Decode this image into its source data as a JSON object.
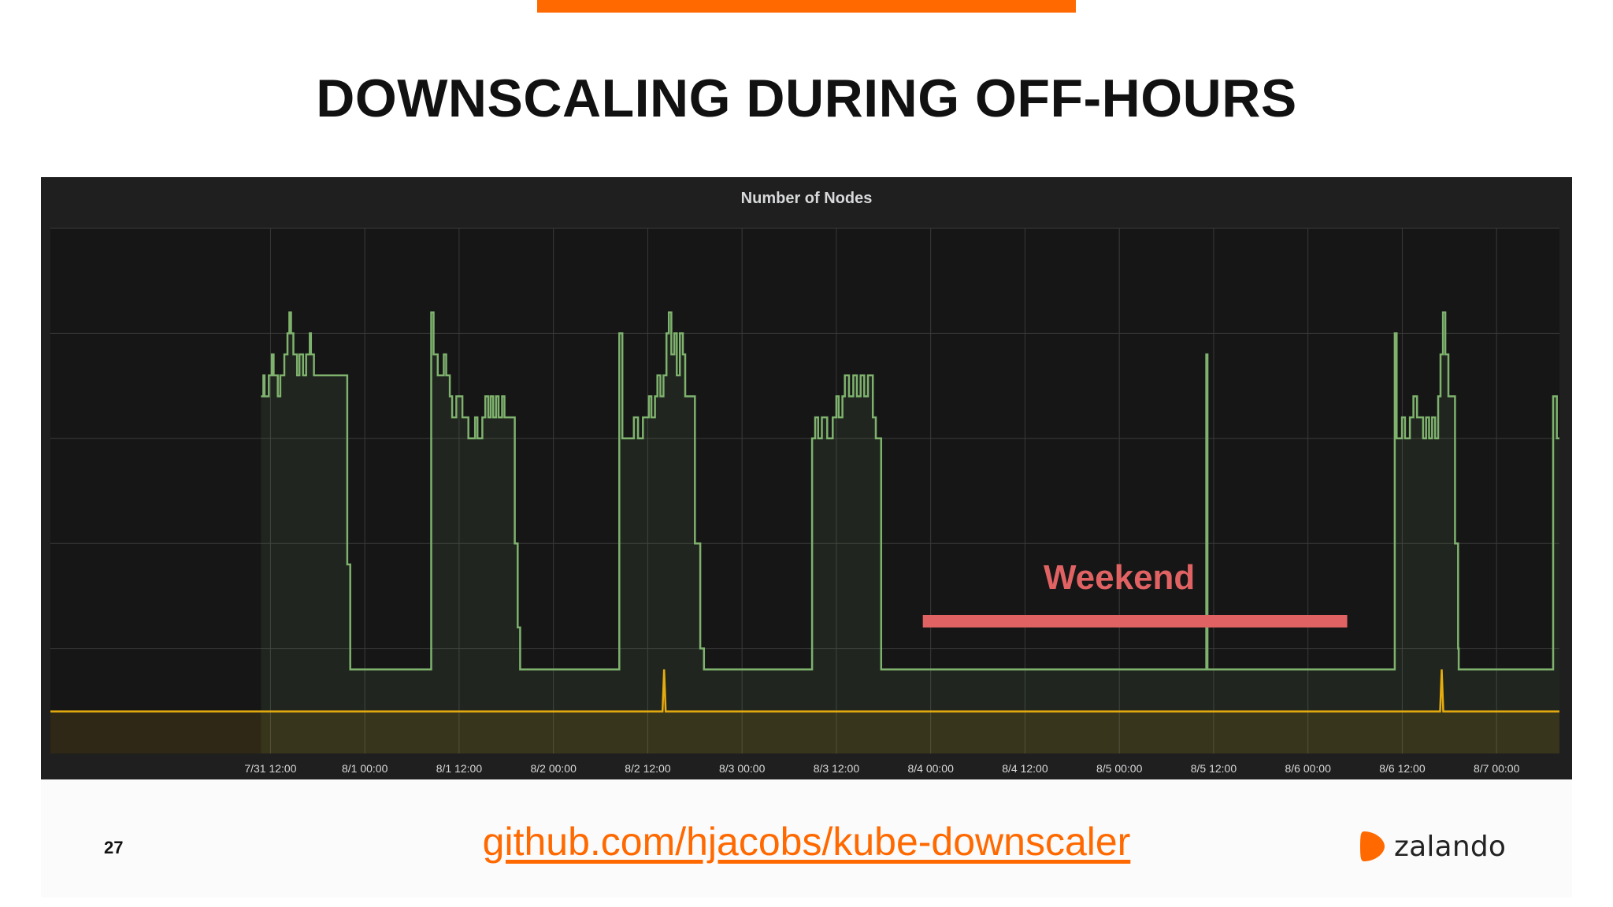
{
  "slide": {
    "title": "DOWNSCALING DURING OFF-HOURS",
    "page_number": "27",
    "link": "github.com/hjacobs/kube-downscaler",
    "brand_name": "zalando",
    "accent_color": "#ff6900"
  },
  "chart_data": {
    "type": "line",
    "title": "Number of Nodes",
    "xlabel": "",
    "ylabel": "",
    "grid": true,
    "x_range": [
      "7/30 08:00",
      "8/7 08:00"
    ],
    "x_ticks": [
      "7/31 12:00",
      "8/1 00:00",
      "8/1 12:00",
      "8/2 00:00",
      "8/2 12:00",
      "8/3 00:00",
      "8/3 12:00",
      "8/4 00:00",
      "8/4 12:00",
      "8/5 00:00",
      "8/5 12:00",
      "8/6 00:00",
      "8/6 12:00",
      "8/7 00:00"
    ],
    "ylim": [
      0,
      5
    ],
    "y_grid_lines": [
      1,
      2,
      3,
      4,
      5
    ],
    "series": [
      {
        "color": "#7eb26d",
        "fill": true,
        "points": [
          [
            "7/31 10:48",
            3.4
          ],
          [
            "7/31 11:06",
            3.6
          ],
          [
            "7/31 11:15",
            3.4
          ],
          [
            "7/31 11:47",
            3.6
          ],
          [
            "7/31 12:10",
            3.8
          ],
          [
            "7/31 12:24",
            3.6
          ],
          [
            "7/31 12:56",
            3.4
          ],
          [
            "7/31 13:15",
            3.6
          ],
          [
            "7/31 13:46",
            3.8
          ],
          [
            "7/31 14:10",
            4.0
          ],
          [
            "7/31 14:24",
            4.2
          ],
          [
            "7/31 14:37",
            4.0
          ],
          [
            "7/31 14:55",
            3.8
          ],
          [
            "7/31 15:23",
            3.6
          ],
          [
            "7/31 15:41",
            3.8
          ],
          [
            "7/31 16:09",
            3.6
          ],
          [
            "7/31 16:32",
            3.8
          ],
          [
            "7/31 17:00",
            4.0
          ],
          [
            "7/31 17:09",
            3.8
          ],
          [
            "7/31 17:32",
            3.6
          ],
          [
            "7/31 21:00",
            3.6
          ],
          [
            "7/31 21:46",
            1.8
          ],
          [
            "7/31 22:09",
            0.8
          ],
          [
            "8/1 08:18",
            0.8
          ],
          [
            "8/1 08:27",
            4.2
          ],
          [
            "8/1 08:45",
            3.8
          ],
          [
            "8/1 09:17",
            3.6
          ],
          [
            "8/1 10:03",
            3.8
          ],
          [
            "8/1 10:21",
            3.6
          ],
          [
            "8/1 10:49",
            3.4
          ],
          [
            "8/1 11:07",
            3.2
          ],
          [
            "8/1 11:39",
            3.4
          ],
          [
            "8/1 12:25",
            3.2
          ],
          [
            "8/1 13:11",
            3.0
          ],
          [
            "8/1 14:02",
            3.2
          ],
          [
            "8/1 14:20",
            3.0
          ],
          [
            "8/1 14:57",
            3.2
          ],
          [
            "8/1 15:20",
            3.4
          ],
          [
            "8/1 15:43",
            3.2
          ],
          [
            "8/1 16:01",
            3.4
          ],
          [
            "8/1 16:20",
            3.2
          ],
          [
            "8/1 16:42",
            3.4
          ],
          [
            "8/1 17:01",
            3.2
          ],
          [
            "8/1 17:28",
            3.4
          ],
          [
            "8/1 17:46",
            3.2
          ],
          [
            "8/1 18:37",
            3.2
          ],
          [
            "8/1 19:05",
            2.0
          ],
          [
            "8/1 19:27",
            1.2
          ],
          [
            "8/1 19:46",
            0.8
          ],
          [
            "8/2 08:14",
            0.8
          ],
          [
            "8/2 08:23",
            4.0
          ],
          [
            "8/2 08:46",
            3.0
          ],
          [
            "8/2 10:00",
            3.0
          ],
          [
            "8/2 10:14",
            3.2
          ],
          [
            "8/2 10:46",
            3.0
          ],
          [
            "8/2 11:23",
            3.2
          ],
          [
            "8/2 12:09",
            3.4
          ],
          [
            "8/2 12:28",
            3.2
          ],
          [
            "8/2 12:55",
            3.4
          ],
          [
            "8/2 13:14",
            3.6
          ],
          [
            "8/2 13:37",
            3.4
          ],
          [
            "8/2 14:00",
            3.6
          ],
          [
            "8/2 14:23",
            4.0
          ],
          [
            "8/2 14:41",
            4.2
          ],
          [
            "8/2 15:00",
            3.8
          ],
          [
            "8/2 15:23",
            4.0
          ],
          [
            "8/2 15:42",
            3.6
          ],
          [
            "8/2 16:05",
            4.0
          ],
          [
            "8/2 16:28",
            3.8
          ],
          [
            "8/2 16:46",
            3.4
          ],
          [
            "8/2 17:46",
            3.4
          ],
          [
            "8/2 18:00",
            2.0
          ],
          [
            "8/2 18:41",
            1.0
          ],
          [
            "8/2 19:09",
            0.8
          ],
          [
            "8/3 08:41",
            0.8
          ],
          [
            "8/3 08:55",
            3.0
          ],
          [
            "8/3 09:18",
            3.2
          ],
          [
            "8/3 09:41",
            3.0
          ],
          [
            "8/3 10:09",
            3.2
          ],
          [
            "8/3 10:50",
            3.0
          ],
          [
            "8/3 11:32",
            3.2
          ],
          [
            "8/3 12:00",
            3.4
          ],
          [
            "8/3 12:18",
            3.2
          ],
          [
            "8/3 12:46",
            3.4
          ],
          [
            "8/3 13:05",
            3.6
          ],
          [
            "8/3 13:37",
            3.4
          ],
          [
            "8/3 14:09",
            3.6
          ],
          [
            "8/3 14:37",
            3.4
          ],
          [
            "8/3 15:05",
            3.6
          ],
          [
            "8/3 15:33",
            3.4
          ],
          [
            "8/3 16:01",
            3.6
          ],
          [
            "8/3 16:38",
            3.2
          ],
          [
            "8/3 17:01",
            3.0
          ],
          [
            "8/3 17:33",
            3.0
          ],
          [
            "8/3 17:42",
            0.8
          ],
          [
            "8/5 10:55",
            0.8
          ],
          [
            "8/5 11:04",
            3.8
          ],
          [
            "8/5 11:13",
            0.8
          ],
          [
            "8/6 10:54",
            0.8
          ],
          [
            "8/6 11:03",
            4.0
          ],
          [
            "8/6 11:17",
            3.0
          ],
          [
            "8/6 11:58",
            3.2
          ],
          [
            "8/6 12:21",
            3.0
          ],
          [
            "8/6 12:58",
            3.2
          ],
          [
            "8/6 13:25",
            3.4
          ],
          [
            "8/6 13:53",
            3.2
          ],
          [
            "8/6 14:39",
            3.0
          ],
          [
            "8/6 15:02",
            3.2
          ],
          [
            "8/6 15:25",
            3.0
          ],
          [
            "8/6 15:48",
            3.2
          ],
          [
            "8/6 16:11",
            3.0
          ],
          [
            "8/6 16:34",
            3.4
          ],
          [
            "8/6 16:52",
            3.8
          ],
          [
            "8/6 17:11",
            4.2
          ],
          [
            "8/6 17:29",
            3.8
          ],
          [
            "8/6 17:52",
            3.4
          ],
          [
            "8/6 18:15",
            3.4
          ],
          [
            "8/6 18:43",
            2.0
          ],
          [
            "8/6 19:06",
            1.0
          ],
          [
            "8/6 19:11",
            0.8
          ],
          [
            "8/7 07:03",
            0.8
          ],
          [
            "8/7 07:12",
            3.4
          ],
          [
            "8/7 07:40",
            3.0
          ],
          [
            "8/7 08:00",
            3.0
          ]
        ]
      },
      {
        "color": "#e5ac0e",
        "fill": true,
        "baseline": 0.4,
        "spikes": [
          [
            "8/2 14:05",
            0.8
          ],
          [
            "8/6 17:01",
            0.8
          ]
        ]
      }
    ],
    "annotation": {
      "text": "Weekend",
      "from": "8/3 23:00",
      "to": "8/6 05:00",
      "color": "#e16262"
    }
  }
}
